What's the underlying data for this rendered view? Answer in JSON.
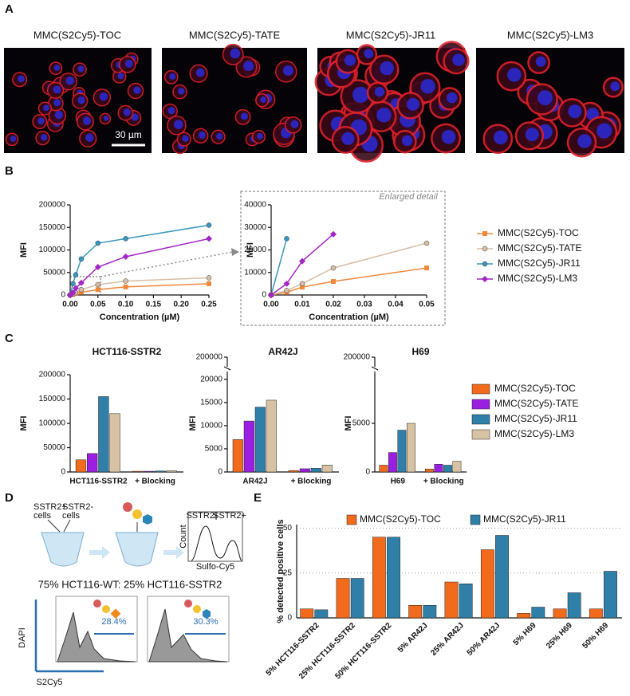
{
  "panel_labels": [
    "A",
    "B",
    "C",
    "D",
    "E"
  ],
  "panel_a": {
    "titles": [
      "MMC(S2Cy5)-TOC",
      "MMC(S2Cy5)-TATE",
      "MMC(S2Cy5)-JR11",
      "MMC(S2Cy5)-LM3"
    ],
    "scale_bar": "30 µm"
  },
  "panel_d": {
    "cells_pos": "SSTR2+",
    "cells_neg": "SSTR2-",
    "cells": "cells",
    "hist_neg": "SSTR2-",
    "hist_pos": "SSTR2+",
    "count": "Count",
    "sulfo": "Sulfo-Cy5",
    "mix": "75% HCT116-WT: 25% HCT116-SSTR2",
    "pct_left": "28.4%",
    "pct_right": "30.3%",
    "y_axis": "DAPI",
    "x_axis": "S2Cy5"
  },
  "chart_data": [
    {
      "type": "line",
      "x_label": "Concentration (µM)",
      "y_label": "MFI",
      "x": [
        0,
        0.005,
        0.01,
        0.02,
        0.05,
        0.1,
        0.25
      ],
      "xlim": [
        0,
        0.25
      ],
      "xticks": [
        {
          "value": 0,
          "label": "0.00"
        },
        {
          "value": 0.05,
          "label": "0.05"
        },
        {
          "value": 0.1,
          "label": "0.10"
        },
        {
          "value": 0.15,
          "label": "0.15"
        },
        {
          "value": 0.2,
          "label": "0.20"
        },
        {
          "value": 0.25,
          "label": "0.25"
        }
      ],
      "ylim": [
        0,
        200000
      ],
      "yticks": [
        0,
        50000,
        100000,
        150000,
        200000
      ],
      "series": [
        {
          "name": "MMC(S2Cy5)-TOC",
          "color": "#f0883a",
          "marker": "square",
          "values": [
            0,
            1200,
            3500,
            6000,
            12000,
            18000,
            25000
          ]
        },
        {
          "name": "MMC(S2Cy5)-TATE",
          "color": "#d6bfa6",
          "marker": "circle",
          "values": [
            0,
            2000,
            5000,
            12000,
            23000,
            31000,
            38000
          ]
        },
        {
          "name": "MMC(S2Cy5)-JR11",
          "color": "#3a98bf",
          "marker": "circle",
          "values": [
            0,
            25000,
            45000,
            80000,
            115000,
            125000,
            155000
          ]
        },
        {
          "name": "MMC(S2Cy5)-LM3",
          "color": "#a326c4",
          "marker": "diamond",
          "values": [
            0,
            5000,
            15000,
            27000,
            62000,
            85000,
            125000
          ]
        }
      ]
    },
    {
      "type": "line",
      "annotation": "Enlarged detail",
      "x_label": "Concentration (µM)",
      "y_label": "MFI",
      "x": [
        0,
        0.005,
        0.01,
        0.02,
        0.05
      ],
      "xlim": [
        0,
        0.05
      ],
      "xticks": [
        {
          "value": 0,
          "label": "0.00"
        },
        {
          "value": 0.01,
          "label": "0.01"
        },
        {
          "value": 0.02,
          "label": "0.02"
        },
        {
          "value": 0.03,
          "label": "0.03"
        },
        {
          "value": 0.04,
          "label": "0.04"
        },
        {
          "value": 0.05,
          "label": "0.05"
        }
      ],
      "ylim": [
        0,
        40000
      ],
      "yticks": [
        0,
        10000,
        20000,
        30000,
        40000
      ],
      "series": [
        {
          "name": "MMC(S2Cy5)-TOC",
          "color": "#f0883a",
          "marker": "square",
          "values": [
            0,
            1200,
            3500,
            6000,
            12000
          ]
        },
        {
          "name": "MMC(S2Cy5)-TATE",
          "color": "#d6bfa6",
          "marker": "circle",
          "values": [
            0,
            2000,
            5000,
            12000,
            23000
          ]
        },
        {
          "name": "MMC(S2Cy5)-JR11",
          "color": "#3a98bf",
          "marker": "circle",
          "values": [
            0,
            25000,
            null,
            null,
            null
          ]
        },
        {
          "name": "MMC(S2Cy5)-LM3",
          "color": "#a326c4",
          "marker": "diamond",
          "values": [
            0,
            5000,
            15000,
            27000,
            null
          ]
        }
      ]
    },
    {
      "type": "bar",
      "title": "HCT116-SSTR2",
      "y_label": "MFI",
      "categories": [
        "HCT116-SSTR2",
        "+ Blocking"
      ],
      "ylim": [
        0,
        200000
      ],
      "yticks": [
        0,
        50000,
        100000,
        150000,
        200000
      ],
      "series": [
        {
          "name": "MMC(S2Cy5)-TOC",
          "color": "#f26a1b",
          "values": [
            25000,
            1500
          ]
        },
        {
          "name": "MMC(S2Cy5)-TATE",
          "color": "#9b1fe0",
          "values": [
            38000,
            1500
          ]
        },
        {
          "name": "MMC(S2Cy5)-JR11",
          "color": "#2f7fa8",
          "values": [
            155000,
            2000
          ]
        },
        {
          "name": "MMC(S2Cy5)-LM3",
          "color": "#d8c2a4",
          "values": [
            120000,
            2500
          ]
        }
      ]
    },
    {
      "type": "bar",
      "title": "AR42J",
      "y_label": "MFI",
      "categories": [
        "AR42J",
        "+ Blocking"
      ],
      "ylim": [
        0,
        21000
      ],
      "yticks": [
        0,
        5000,
        10000,
        15000,
        20000
      ],
      "ytop_tick": 200000,
      "series": [
        {
          "name": "MMC(S2Cy5)-TOC",
          "color": "#f26a1b",
          "values": [
            7000,
            300
          ]
        },
        {
          "name": "MMC(S2Cy5)-TATE",
          "color": "#9b1fe0",
          "values": [
            11000,
            700
          ]
        },
        {
          "name": "MMC(S2Cy5)-JR11",
          "color": "#2f7fa8",
          "values": [
            14000,
            800
          ]
        },
        {
          "name": "MMC(S2Cy5)-LM3",
          "color": "#d8c2a4",
          "values": [
            15500,
            1500
          ]
        }
      ]
    },
    {
      "type": "bar",
      "title": "H69",
      "y_label": "MFI",
      "categories": [
        "H69",
        "+ Blocking"
      ],
      "ylim": [
        0,
        10000
      ],
      "yticks": [
        0,
        5000
      ],
      "ytop_tick": 200000,
      "series": [
        {
          "name": "MMC(S2Cy5)-TOC",
          "color": "#f26a1b",
          "values": [
            700,
            300
          ]
        },
        {
          "name": "MMC(S2Cy5)-TATE",
          "color": "#9b1fe0",
          "values": [
            2000,
            800
          ]
        },
        {
          "name": "MMC(S2Cy5)-JR11",
          "color": "#2f7fa8",
          "values": [
            4300,
            700
          ]
        },
        {
          "name": "MMC(S2Cy5)-LM3",
          "color": "#d8c2a4",
          "values": [
            5000,
            1100
          ]
        }
      ]
    },
    {
      "type": "bar",
      "y_label": "% detected positive cells",
      "grid": true,
      "categories": [
        "5% HCT116-SSTR2",
        "25% HCT116-SSTR2",
        "50% HCT116-SSTR2",
        "5% AR42J",
        "25% AR42J",
        "50% AR42J",
        "5% H69",
        "25% H69",
        "50% H69"
      ],
      "ylim": [
        0,
        52
      ],
      "yticks": [
        0,
        25,
        50
      ],
      "series": [
        {
          "name": "MMC(S2Cy5)-TOC",
          "color": "#f26a1b",
          "values": [
            5,
            22,
            45,
            7,
            20,
            38,
            2.5,
            5,
            5
          ]
        },
        {
          "name": "MMC(S2Cy5)-JR11",
          "color": "#2f7fa8",
          "values": [
            4.5,
            22,
            45,
            7,
            19,
            46,
            6,
            14,
            26
          ]
        }
      ]
    }
  ]
}
